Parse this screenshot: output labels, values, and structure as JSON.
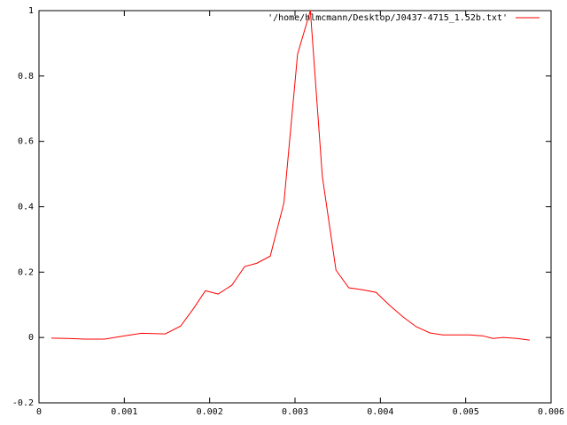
{
  "chart_data": {
    "type": "line",
    "xlim": [
      0,
      0.006
    ],
    "xticks": [
      0,
      0.001,
      0.002,
      0.003,
      0.004,
      0.005,
      0.006
    ],
    "ylim": [
      -0.2,
      1
    ],
    "yticks": [
      -0.2,
      0,
      0.2,
      0.4,
      0.6,
      0.8,
      1
    ],
    "legend": "top-right",
    "series": [
      {
        "name": "'/home/hlmcmann/Desktop/J0437-4715_1.52b.txt'",
        "color": "#ff0000",
        "x": [
          0.000145,
          0.00034,
          0.00054,
          0.00077,
          0.001,
          0.0012,
          0.00148,
          0.00166,
          0.00182,
          0.00195,
          0.0021,
          0.00226,
          0.00241,
          0.00255,
          0.00271,
          0.00287,
          0.00303,
          0.00318,
          0.00332,
          0.00348,
          0.00363,
          0.00379,
          0.00395,
          0.00411,
          0.00427,
          0.00442,
          0.00458,
          0.00473,
          0.0049,
          0.00505,
          0.0052,
          0.00532,
          0.00544,
          0.0056,
          0.00575
        ],
        "values": [
          -0.002,
          -0.003,
          -0.005,
          -0.005,
          0.005,
          0.013,
          0.011,
          0.035,
          0.092,
          0.143,
          0.133,
          0.16,
          0.217,
          0.227,
          0.249,
          0.412,
          0.867,
          1.0,
          0.493,
          0.206,
          0.152,
          0.146,
          0.138,
          0.098,
          0.062,
          0.033,
          0.014,
          0.008,
          0.008,
          0.008,
          0.005,
          -0.003,
          0,
          -0.003,
          -0.008
        ]
      }
    ]
  }
}
